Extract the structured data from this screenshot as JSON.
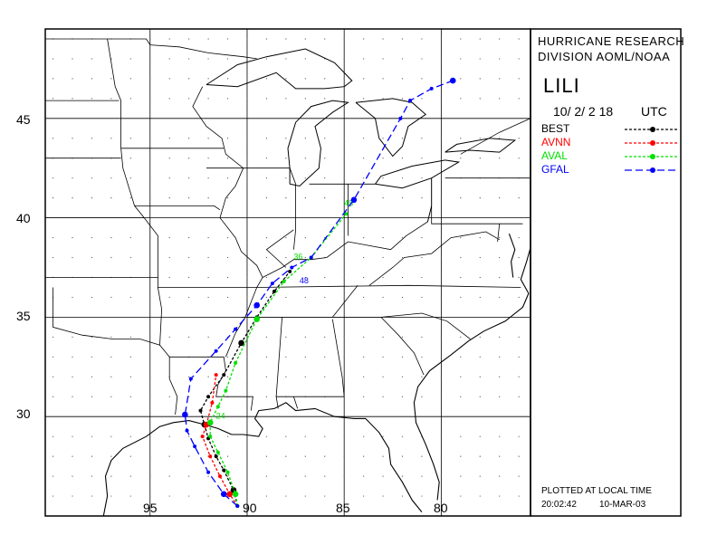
{
  "header": {
    "org_line1": "HURRICANE RESEARCH",
    "org_line2": "DIVISION AOML/NOAA",
    "storm_name": "LILI",
    "datetime": "10/ 2/ 2 18",
    "tz": "UTC"
  },
  "legend": [
    {
      "name": "BEST",
      "color": "#000000",
      "dash": "3,2"
    },
    {
      "name": "AVNN",
      "color": "#ff0000",
      "dash": "3,2"
    },
    {
      "name": "AVAL",
      "color": "#00e000",
      "dash": "3,2"
    },
    {
      "name": "GFAL",
      "color": "#0000ff",
      "dash": "8,4"
    }
  ],
  "footer": {
    "line1": "PLOTTED AT LOCAL TIME",
    "time": "20:02:42",
    "date": "10-MAR-03"
  },
  "axes": {
    "lat_ticks": [
      "45",
      "40",
      "35",
      "30"
    ],
    "lon_ticks": [
      "95",
      "90",
      "85",
      "80"
    ]
  },
  "map_extent": {
    "lon_min": -100.4,
    "lon_max": -75.4,
    "lat_min": 25.0,
    "lat_max": 49.5
  },
  "tracks": [
    {
      "model": "BEST",
      "color": "#000000",
      "dash": "3,2",
      "points": [
        [
          -90.5,
          25.5
        ],
        [
          -90.7,
          26.3
        ],
        [
          -91.2,
          27.3
        ],
        [
          -91.6,
          28.0
        ],
        [
          -92.0,
          28.9
        ],
        [
          -92.2,
          29.6
        ],
        [
          -92.4,
          30.3
        ],
        [
          -92.0,
          31.0
        ],
        [
          -91.2,
          32.1
        ],
        [
          -90.3,
          33.7
        ],
        [
          -89.5,
          35.0
        ],
        [
          -88.6,
          36.3
        ],
        [
          -87.8,
          37.3
        ]
      ]
    },
    {
      "model": "AVNN",
      "color": "#ff0000",
      "dash": "3,2",
      "points": [
        [
          -90.5,
          25.5
        ],
        [
          -90.9,
          26.1
        ],
        [
          -91.4,
          27.0
        ],
        [
          -91.9,
          28.0
        ],
        [
          -92.3,
          29.0
        ],
        [
          -92.1,
          29.6
        ],
        [
          -91.8,
          30.7
        ],
        [
          -91.6,
          32.1
        ]
      ]
    },
    {
      "model": "AVAL",
      "color": "#00e000",
      "dash": "3,2",
      "points": [
        [
          -90.5,
          25.5
        ],
        [
          -90.6,
          26.1
        ],
        [
          -91.0,
          27.2
        ],
        [
          -91.5,
          28.2
        ],
        [
          -91.9,
          29.0
        ],
        [
          -91.9,
          29.7
        ],
        [
          -91.5,
          30.5
        ],
        [
          -91.1,
          31.3
        ],
        [
          -90.6,
          32.7
        ],
        [
          -89.5,
          34.9
        ],
        [
          -88.1,
          36.8
        ],
        [
          -86.7,
          38.0
        ],
        [
          -84.9,
          40.2
        ]
      ],
      "labels": [
        {
          "text": "24",
          "lon": -91.6,
          "lat": 29.9
        },
        {
          "text": "36",
          "lon": -87.6,
          "lat": 37.9
        },
        {
          "text": "48",
          "lon": -85.0,
          "lat": 40.6
        }
      ]
    },
    {
      "model": "GFAL",
      "color": "#0000ff",
      "dash": "8,4",
      "points": [
        [
          -90.5,
          25.5
        ],
        [
          -91.2,
          26.1
        ],
        [
          -92.0,
          27.2
        ],
        [
          -92.7,
          28.5
        ],
        [
          -93.1,
          29.3
        ],
        [
          -93.2,
          30.1
        ],
        [
          -92.9,
          31.9
        ],
        [
          -91.6,
          33.3
        ],
        [
          -90.6,
          34.4
        ],
        [
          -89.5,
          35.6
        ],
        [
          -88.7,
          36.7
        ],
        [
          -87.7,
          37.5
        ],
        [
          -86.7,
          38.0
        ],
        [
          -84.5,
          40.9
        ],
        [
          -82.1,
          45.0
        ],
        [
          -81.6,
          45.9
        ],
        [
          -80.5,
          46.5
        ],
        [
          -79.4,
          46.9
        ]
      ],
      "labels": [
        {
          "text": "48",
          "lon": -87.3,
          "lat": 36.7
        }
      ]
    }
  ]
}
